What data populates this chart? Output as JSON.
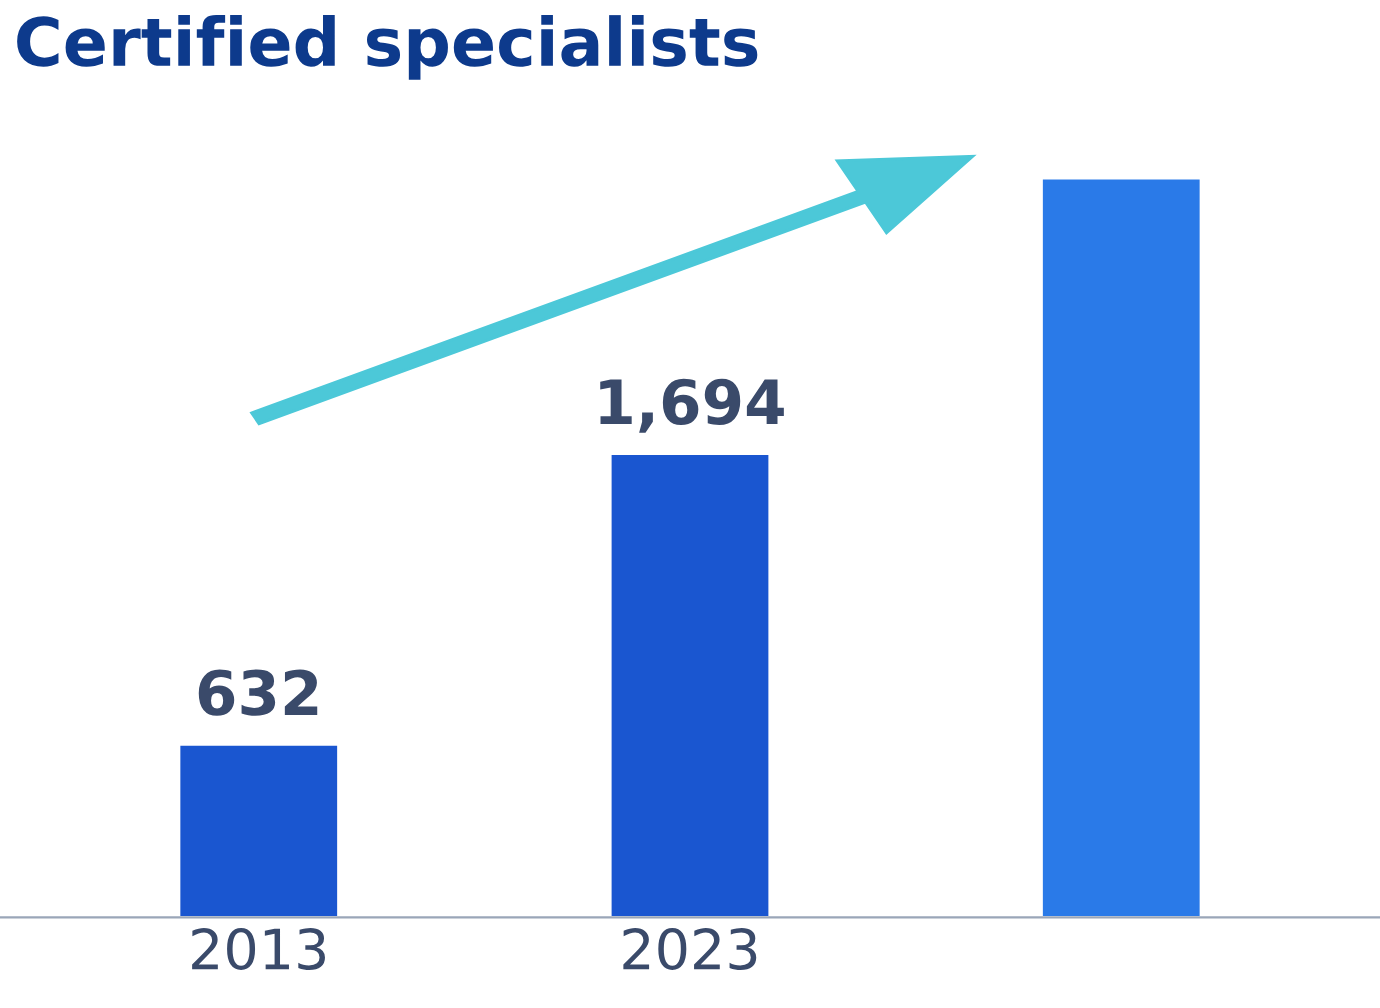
{
  "chart_data": {
    "type": "bar",
    "title": "Certified specialists",
    "categories": [
      "2013",
      "2023",
      null
    ],
    "values": [
      632,
      1694,
      2700
    ],
    "value_labels": [
      "632",
      "1,694",
      null
    ],
    "colors": [
      "#1a56d0",
      "#1a56d0",
      "#2a7ae8"
    ],
    "tick_labels": "x",
    "grid": false,
    "legend": false
  }
}
